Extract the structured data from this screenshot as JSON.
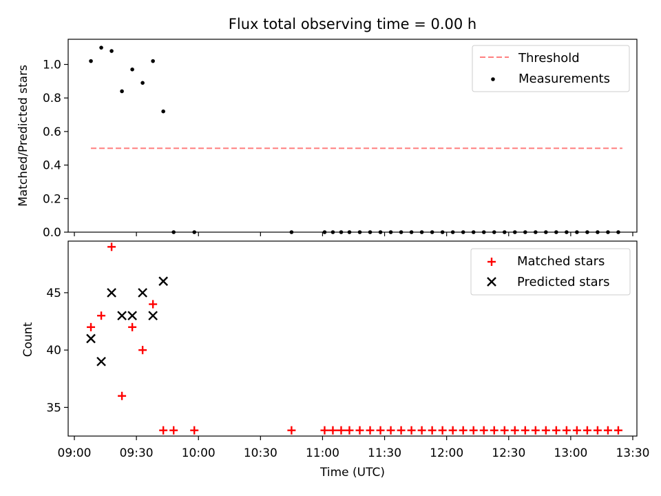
{
  "chart_data": [
    {
      "type": "scatter",
      "title": "Flux total observing time = 0.00 h",
      "xlabel": "",
      "ylabel": "Matched/Predicted stars",
      "xlim": [
        "08:57",
        "13:32"
      ],
      "ylim": [
        0,
        1.15
      ],
      "yticks": [
        0.0,
        0.2,
        0.4,
        0.6,
        0.8,
        1.0
      ],
      "ytick_labels": [
        "0.0",
        "0.2",
        "0.4",
        "0.6",
        "0.8",
        "1.0"
      ],
      "legend_position": "top-right",
      "series": [
        {
          "name": "Threshold",
          "kind": "dashed-line",
          "color": "#ff7f7f",
          "x": [
            "09:08",
            "13:25"
          ],
          "y": [
            0.5,
            0.5
          ]
        },
        {
          "name": "Measurements",
          "kind": "dot",
          "color": "#000000",
          "x": [
            "09:08",
            "09:13",
            "09:18",
            "09:23",
            "09:28",
            "09:33",
            "09:38",
            "09:43",
            "09:48",
            "09:58",
            "10:45",
            "11:01",
            "11:05",
            "11:09",
            "11:13",
            "11:18",
            "11:23",
            "11:28",
            "11:33",
            "11:38",
            "11:43",
            "11:48",
            "11:53",
            "11:58",
            "12:03",
            "12:08",
            "12:13",
            "12:18",
            "12:23",
            "12:28",
            "12:33",
            "12:38",
            "12:43",
            "12:48",
            "12:53",
            "12:58",
            "13:03",
            "13:08",
            "13:13",
            "13:18",
            "13:23"
          ],
          "y": [
            1.02,
            1.1,
            1.08,
            0.84,
            0.97,
            0.89,
            1.02,
            0.72,
            0,
            0,
            0,
            0,
            0,
            0,
            0,
            0,
            0,
            0,
            0,
            0,
            0,
            0,
            0,
            0,
            0,
            0,
            0,
            0,
            0,
            0,
            0,
            0,
            0,
            0,
            0,
            0,
            0,
            0,
            0,
            0,
            0
          ]
        }
      ]
    },
    {
      "type": "scatter",
      "title": "",
      "xlabel": "Time (UTC)",
      "ylabel": "Count",
      "xlim": [
        "08:57",
        "13:32"
      ],
      "ylim": [
        32.5,
        49.5
      ],
      "xticks": [
        "09:00",
        "09:30",
        "10:00",
        "10:30",
        "11:00",
        "11:30",
        "12:00",
        "12:30",
        "13:00",
        "13:30"
      ],
      "yticks": [
        35,
        40,
        45
      ],
      "ytick_labels": [
        "35",
        "40",
        "45"
      ],
      "legend_position": "top-right",
      "series": [
        {
          "name": "Matched stars",
          "marker": "plus",
          "color": "#ff0000",
          "x": [
            "09:08",
            "09:13",
            "09:18",
            "09:23",
            "09:28",
            "09:33",
            "09:38",
            "09:43",
            "09:48",
            "09:58",
            "10:45",
            "11:01",
            "11:05",
            "11:09",
            "11:13",
            "11:18",
            "11:23",
            "11:28",
            "11:33",
            "11:38",
            "11:43",
            "11:48",
            "11:53",
            "11:58",
            "12:03",
            "12:08",
            "12:13",
            "12:18",
            "12:23",
            "12:28",
            "12:33",
            "12:38",
            "12:43",
            "12:48",
            "12:53",
            "12:58",
            "13:03",
            "13:08",
            "13:13",
            "13:18",
            "13:23"
          ],
          "y": [
            42,
            43,
            49,
            36,
            42,
            40,
            44,
            33,
            33,
            33,
            33,
            33,
            33,
            33,
            33,
            33,
            33,
            33,
            33,
            33,
            33,
            33,
            33,
            33,
            33,
            33,
            33,
            33,
            33,
            33,
            33,
            33,
            33,
            33,
            33,
            33,
            33,
            33,
            33,
            33,
            33
          ]
        },
        {
          "name": "Predicted stars",
          "marker": "x",
          "color": "#000000",
          "x": [
            "09:08",
            "09:13",
            "09:18",
            "09:23",
            "09:28",
            "09:33",
            "09:38",
            "09:43"
          ],
          "y": [
            41,
            39,
            45,
            43,
            43,
            45,
            43,
            46
          ]
        }
      ]
    }
  ]
}
